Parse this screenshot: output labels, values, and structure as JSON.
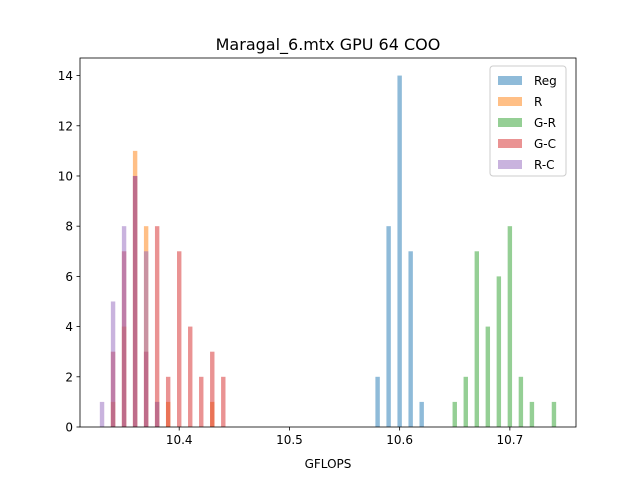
{
  "chart_data": {
    "type": "bar",
    "title": "Maragal_6.mtx GPU 64 COO",
    "xlabel": "GFLOPS",
    "ylabel": "",
    "xlim": [
      10.31,
      10.76
    ],
    "ylim": [
      0,
      14.7
    ],
    "xticks": [
      10.4,
      10.5,
      10.6,
      10.7
    ],
    "xtick_labels": [
      "10.4",
      "10.5",
      "10.6",
      "10.7"
    ],
    "yticks": [
      0,
      2,
      4,
      6,
      8,
      10,
      12,
      14
    ],
    "ytick_labels": [
      "0",
      "2",
      "4",
      "6",
      "8",
      "10",
      "12",
      "14"
    ],
    "bar_width": 0.004,
    "grid": false,
    "legend_position": "top-right",
    "series": [
      {
        "name": "Reg",
        "color": "#1f77b4",
        "alpha": 0.5,
        "x": [
          10.58,
          10.59,
          10.6,
          10.61,
          10.62
        ],
        "values": [
          2,
          8,
          14,
          7,
          1
        ]
      },
      {
        "name": "R",
        "color": "#ff7f0e",
        "alpha": 0.5,
        "x": [
          10.34,
          10.35,
          10.36,
          10.37,
          10.38,
          10.39,
          10.43
        ],
        "values": [
          1,
          4,
          11,
          8,
          1,
          1,
          1
        ]
      },
      {
        "name": "G-R",
        "color": "#2ca02c",
        "alpha": 0.5,
        "x": [
          10.65,
          10.66,
          10.67,
          10.68,
          10.69,
          10.7,
          10.71,
          10.72,
          10.74
        ],
        "values": [
          1,
          2,
          7,
          4,
          6,
          8,
          2,
          1,
          1
        ]
      },
      {
        "name": "G-C",
        "color": "#d62728",
        "alpha": 0.5,
        "x": [
          10.34,
          10.35,
          10.36,
          10.37,
          10.38,
          10.39,
          10.4,
          10.41,
          10.42,
          10.43,
          10.44
        ],
        "values": [
          3,
          7,
          10,
          3,
          8,
          2,
          7,
          4,
          2,
          3,
          2
        ]
      },
      {
        "name": "R-C",
        "color": "#9467bd",
        "alpha": 0.5,
        "x": [
          10.33,
          10.34,
          10.35,
          10.36,
          10.37,
          10.38
        ],
        "values": [
          1,
          5,
          8,
          10,
          7,
          1
        ]
      }
    ]
  }
}
